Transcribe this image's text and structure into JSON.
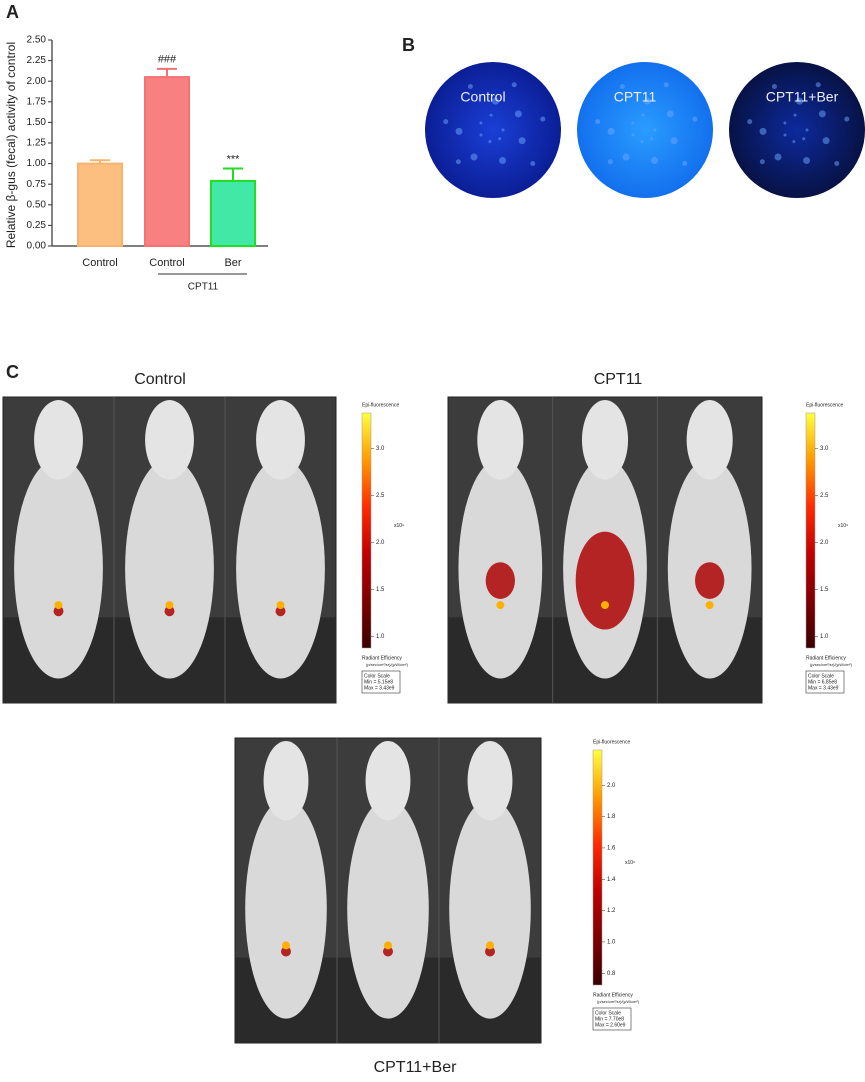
{
  "chart_data": {
    "type": "bar",
    "y_label": "Relative β-gus (fecal) activity of control",
    "categories": [
      "Control",
      "Control",
      "Ber"
    ],
    "group_label": "CPT11",
    "values": [
      1.0,
      2.05,
      0.79
    ],
    "errors": [
      0.04,
      0.1,
      0.15
    ],
    "value_annotations": [
      null,
      "###",
      "***"
    ],
    "colors": [
      "#fdbf80",
      "#f98080",
      "#42e8a6"
    ],
    "edge_colors": [
      "#f6b36f",
      "#f47272",
      "#22dd22"
    ],
    "ylim": [
      0,
      2.5
    ],
    "yticks": [
      {
        "value": 0,
        "label": "0.00"
      },
      {
        "value": 0.25,
        "label": "0.25"
      },
      {
        "value": 0.5,
        "label": "0.50"
      },
      {
        "value": 0.75,
        "label": "0.75"
      },
      {
        "value": 1,
        "label": "1.00"
      },
      {
        "value": 1.25,
        "label": "1.25"
      },
      {
        "value": 1.5,
        "label": "1.50"
      },
      {
        "value": 1.75,
        "label": "1.75"
      },
      {
        "value": 2,
        "label": "2.00"
      },
      {
        "value": 2.25,
        "label": "2.25"
      },
      {
        "value": 2.5,
        "label": "2.50"
      }
    ]
  },
  "panel_labels": [
    "A",
    "B",
    "C"
  ],
  "plates": [
    "Control",
    "CPT11",
    "CPT11+Ber"
  ],
  "imaging": [
    {
      "title": "Control",
      "scale_title": "Epi-fluorescence",
      "ticks": [
        "3.0",
        "2.5",
        "2.0",
        "1.5",
        "1.0"
      ],
      "multiplier": "x10⁹",
      "unit_title": "Radiant Efficiency",
      "unit": "(p/sec/cm²/sr)/(µW/cm²)",
      "box_title": "Color Scale",
      "min": "Min = 5.15e8",
      "max": "Max = 3.43e9"
    },
    {
      "title": "CPT11",
      "scale_title": "Epi-fluorescence",
      "ticks": [
        "3.0",
        "2.5",
        "2.0",
        "1.5",
        "1.0"
      ],
      "multiplier": "x10⁹",
      "unit_title": "Radiant Efficiency",
      "unit": "(p/sec/cm²/sr)/(µW/cm²)",
      "box_title": "Color Scale",
      "min": "Min = 6.85e8",
      "max": "Max = 3.43e9"
    },
    {
      "title": "CPT11+Ber",
      "scale_title": "Epi-fluorescence",
      "ticks": [
        "2.0",
        "1.8",
        "1.6",
        "1.4",
        "1.2",
        "1.0",
        "0.8"
      ],
      "multiplier": "x10⁹",
      "unit_title": "Radiant Efficiency",
      "unit": "(p/sec/cm²/sr)/(µW/cm²)",
      "box_title": "Color Scale",
      "min": "Min = 7.70e8",
      "max": "Max = 2.60e9"
    }
  ]
}
